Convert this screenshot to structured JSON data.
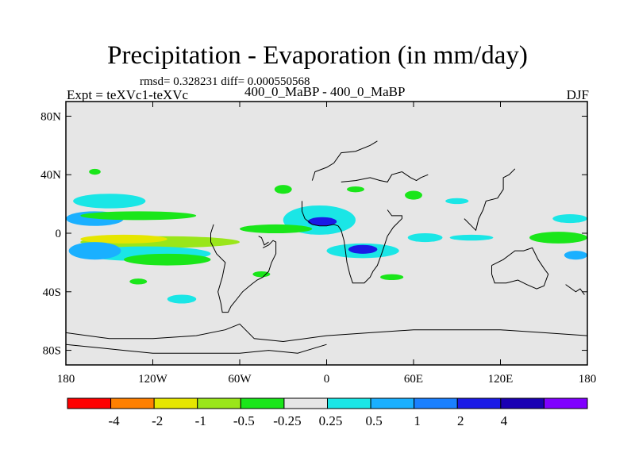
{
  "chart_data": {
    "type": "heatmap",
    "title": "Precipitation - Evaporation (in mm/day)",
    "subtitle": "rmsd= 0.328231 diff= 0.000550568",
    "left_label": "Expt = teXVc1-teXVc",
    "center_label": "400_0_MaBP - 400_0_MaBP",
    "right_label": "DJF",
    "x_ticks": [
      {
        "value": -180,
        "label": "180"
      },
      {
        "value": -120,
        "label": "120W"
      },
      {
        "value": -60,
        "label": "60W"
      },
      {
        "value": 0,
        "label": "0"
      },
      {
        "value": 60,
        "label": "60E"
      },
      {
        "value": 120,
        "label": "120E"
      },
      {
        "value": 180,
        "label": "180"
      }
    ],
    "y_ticks": [
      {
        "value": 80,
        "label": "80N"
      },
      {
        "value": 40,
        "label": "40N"
      },
      {
        "value": 0,
        "label": "0"
      },
      {
        "value": -40,
        "label": "40S"
      },
      {
        "value": -80,
        "label": "80S"
      }
    ],
    "xlim": [
      -180,
      180
    ],
    "ylim": [
      -90,
      90
    ],
    "background_color": "#e6e6e6",
    "colorbar": {
      "colors": [
        "#ff0000",
        "#ff8000",
        "#e6e600",
        "#9ae61a",
        "#1ae61a",
        "#e6e6e6",
        "#1ae6e6",
        "#1ab0ff",
        "#1a80ff",
        "#1a1ae6",
        "#1a00b3",
        "#8000ff"
      ],
      "labels": [
        "-4",
        "-2",
        "-1",
        "-0.5",
        "-0.25",
        "0.25",
        "0.5",
        "1",
        "2",
        "4"
      ]
    },
    "blobs": [
      {
        "lon": -125,
        "lat": 4,
        "rx": 60,
        "ry": 10,
        "level": 5
      },
      {
        "lon": -115,
        "lat": -6,
        "rx": 55,
        "ry": 4,
        "level": 3
      },
      {
        "lon": -140,
        "lat": -4,
        "rx": 30,
        "ry": 3,
        "level": 2
      },
      {
        "lon": -125,
        "lat": -14,
        "rx": 45,
        "ry": 5,
        "level": 6
      },
      {
        "lon": -110,
        "lat": -18,
        "rx": 30,
        "ry": 4,
        "level": 4
      },
      {
        "lon": -160,
        "lat": -12,
        "rx": 18,
        "ry": 6,
        "level": 7
      },
      {
        "lon": -150,
        "lat": 22,
        "rx": 25,
        "ry": 5,
        "level": 6
      },
      {
        "lon": -160,
        "lat": 10,
        "rx": 20,
        "ry": 5,
        "level": 7
      },
      {
        "lon": -130,
        "lat": 12,
        "rx": 40,
        "ry": 3,
        "level": 4
      },
      {
        "lon": -40,
        "lat": 10,
        "rx": 25,
        "ry": 6,
        "level": 5
      },
      {
        "lon": -5,
        "lat": 9,
        "rx": 25,
        "ry": 10,
        "level": 6
      },
      {
        "lon": -3,
        "lat": 8,
        "rx": 10,
        "ry": 3,
        "level": 9
      },
      {
        "lon": -35,
        "lat": 3,
        "rx": 25,
        "ry": 3,
        "level": 4
      },
      {
        "lon": 25,
        "lat": -12,
        "rx": 25,
        "ry": 5,
        "level": 6
      },
      {
        "lon": 25,
        "lat": -11,
        "rx": 10,
        "ry": 3,
        "level": 9
      },
      {
        "lon": 68,
        "lat": -3,
        "rx": 12,
        "ry": 3,
        "level": 6
      },
      {
        "lon": 100,
        "lat": -3,
        "rx": 15,
        "ry": 2,
        "level": 6
      },
      {
        "lon": 160,
        "lat": -3,
        "rx": 20,
        "ry": 4,
        "level": 4
      },
      {
        "lon": 168,
        "lat": 10,
        "rx": 12,
        "ry": 3,
        "level": 6
      },
      {
        "lon": 172,
        "lat": -15,
        "rx": 8,
        "ry": 3,
        "level": 7
      },
      {
        "lon": -100,
        "lat": -45,
        "rx": 10,
        "ry": 3,
        "level": 6
      },
      {
        "lon": -130,
        "lat": -33,
        "rx": 6,
        "ry": 2,
        "level": 4
      },
      {
        "lon": -160,
        "lat": 42,
        "rx": 4,
        "ry": 2,
        "level": 4
      },
      {
        "lon": -30,
        "lat": 30,
        "rx": 6,
        "ry": 3,
        "level": 4
      },
      {
        "lon": 20,
        "lat": 30,
        "rx": 6,
        "ry": 2,
        "level": 4
      },
      {
        "lon": 60,
        "lat": 26,
        "rx": 6,
        "ry": 3,
        "level": 4
      },
      {
        "lon": 90,
        "lat": 22,
        "rx": 8,
        "ry": 2,
        "level": 6
      },
      {
        "lon": 45,
        "lat": -30,
        "rx": 8,
        "ry": 2,
        "level": 4
      },
      {
        "lon": -45,
        "lat": -28,
        "rx": 6,
        "ry": 2,
        "level": 4
      }
    ],
    "coastlines": [
      [
        [
          -44,
          -10
        ],
        [
          -40,
          -8
        ],
        [
          -37,
          -5
        ],
        [
          -35,
          -6
        ],
        [
          -35,
          -14
        ],
        [
          -38,
          -20
        ],
        [
          -40,
          -26
        ],
        [
          -44,
          -30
        ],
        [
          -48,
          -32
        ],
        [
          -52,
          -35
        ],
        [
          -58,
          -40
        ],
        [
          -62,
          -45
        ],
        [
          -66,
          -50
        ],
        [
          -68,
          -54
        ],
        [
          -72,
          -54
        ],
        [
          -73,
          -48
        ],
        [
          -75,
          -40
        ],
        [
          -72,
          -30
        ],
        [
          -70,
          -20
        ],
        [
          -76,
          -14
        ],
        [
          -80,
          -6
        ],
        [
          -80,
          0
        ],
        [
          -78,
          6
        ]
      ],
      [
        [
          -40,
          -6
        ],
        [
          -43,
          -8
        ],
        [
          -45,
          -3
        ],
        [
          -47,
          -2
        ]
      ],
      [
        [
          8,
          5
        ],
        [
          10,
          2
        ],
        [
          12,
          -5
        ],
        [
          13,
          -12
        ],
        [
          14,
          -20
        ],
        [
          16,
          -28
        ],
        [
          18,
          -34
        ],
        [
          22,
          -34
        ],
        [
          26,
          -34
        ],
        [
          30,
          -30
        ],
        [
          32,
          -26
        ],
        [
          35,
          -22
        ],
        [
          38,
          -14
        ],
        [
          40,
          -8
        ],
        [
          42,
          -2
        ],
        [
          46,
          4
        ],
        [
          52,
          10
        ],
        [
          52,
          12
        ],
        [
          45,
          12
        ],
        [
          42,
          16
        ]
      ],
      [
        [
          -5,
          5
        ],
        [
          0,
          5
        ],
        [
          5,
          6
        ],
        [
          8,
          5
        ]
      ],
      [
        [
          -5,
          5
        ],
        [
          -10,
          6
        ],
        [
          -15,
          10
        ],
        [
          -17,
          15
        ],
        [
          -17,
          22
        ]
      ],
      [
        [
          10,
          35
        ],
        [
          20,
          36
        ],
        [
          30,
          38
        ],
        [
          37,
          36
        ],
        [
          42,
          35
        ],
        [
          45,
          40
        ],
        [
          52,
          42
        ],
        [
          58,
          38
        ],
        [
          62,
          36
        ],
        [
          65,
          38
        ],
        [
          70,
          40
        ]
      ],
      [
        [
          -10,
          36
        ],
        [
          -8,
          42
        ],
        [
          0,
          45
        ],
        [
          5,
          48
        ],
        [
          10,
          55
        ],
        [
          20,
          56
        ],
        [
          30,
          60
        ],
        [
          35,
          63
        ]
      ],
      [
        [
          95,
          10
        ],
        [
          100,
          5
        ],
        [
          103,
          2
        ],
        [
          105,
          10
        ],
        [
          108,
          16
        ],
        [
          110,
          22
        ],
        [
          118,
          24
        ],
        [
          122,
          30
        ],
        [
          122,
          38
        ],
        [
          126,
          40
        ],
        [
          130,
          44
        ]
      ],
      [
        [
          114,
          -22
        ],
        [
          122,
          -18
        ],
        [
          130,
          -12
        ],
        [
          136,
          -12
        ],
        [
          142,
          -10
        ],
        [
          146,
          -18
        ],
        [
          150,
          -24
        ],
        [
          153,
          -28
        ],
        [
          150,
          -36
        ],
        [
          145,
          -38
        ],
        [
          138,
          -35
        ],
        [
          132,
          -32
        ],
        [
          124,
          -34
        ],
        [
          116,
          -34
        ],
        [
          114,
          -28
        ],
        [
          114,
          -22
        ]
      ],
      [
        [
          165,
          -35
        ],
        [
          172,
          -40
        ],
        [
          175,
          -38
        ],
        [
          178,
          -42
        ]
      ],
      [
        [
          -180,
          -68
        ],
        [
          -150,
          -72
        ],
        [
          -120,
          -72
        ],
        [
          -90,
          -70
        ],
        [
          -70,
          -66
        ],
        [
          -60,
          -62
        ],
        [
          -50,
          -72
        ],
        [
          -30,
          -74
        ],
        [
          0,
          -70
        ],
        [
          30,
          -68
        ],
        [
          60,
          -66
        ],
        [
          90,
          -66
        ],
        [
          120,
          -66
        ],
        [
          150,
          -68
        ],
        [
          180,
          -70
        ]
      ],
      [
        [
          -180,
          -76
        ],
        [
          -160,
          -78
        ],
        [
          -140,
          -80
        ],
        [
          -120,
          -82
        ],
        [
          -100,
          -82
        ],
        [
          -80,
          -82
        ],
        [
          -60,
          -82
        ],
        [
          -40,
          -80
        ],
        [
          -20,
          -82
        ],
        [
          0,
          -76
        ]
      ]
    ]
  }
}
